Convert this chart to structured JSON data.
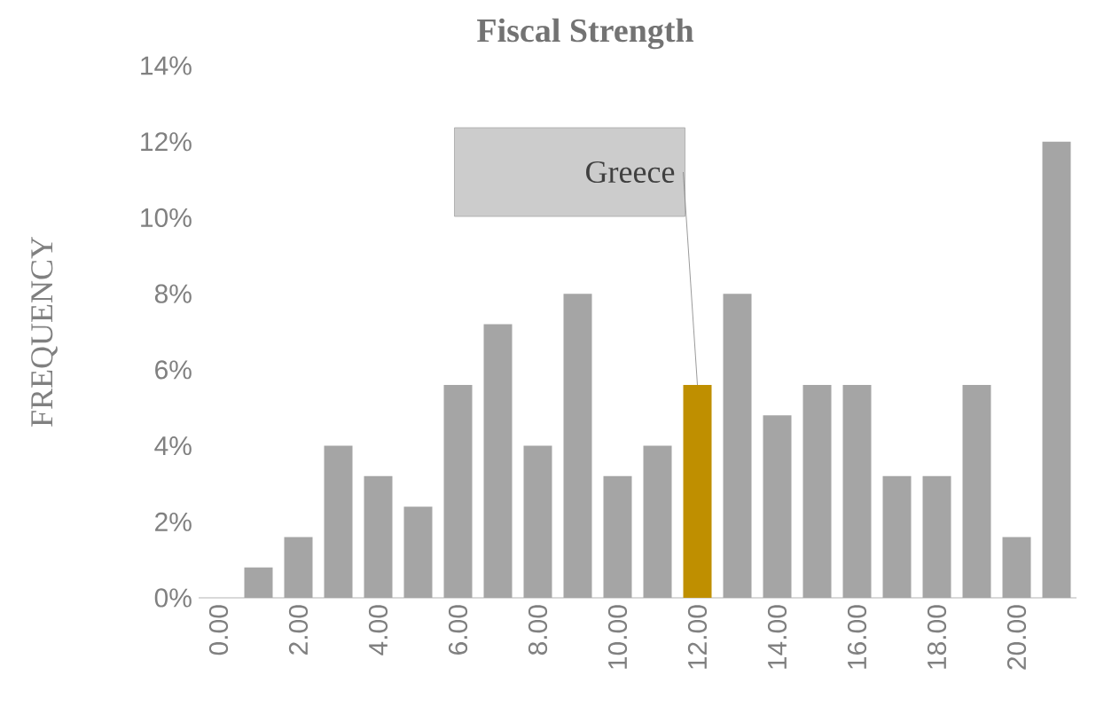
{
  "chart_data": {
    "type": "bar",
    "title": "Fiscal Strength",
    "ylabel": "FREQUENCY",
    "categories": [
      "0.00",
      null,
      "2.00",
      null,
      "4.00",
      null,
      "6.00",
      null,
      "8.00",
      null,
      "10.00",
      null,
      "12.00",
      null,
      "14.00",
      null,
      "16.00",
      null,
      "18.00",
      null,
      "20.00",
      null
    ],
    "values": [
      0,
      0.8,
      1.6,
      4.0,
      3.2,
      2.4,
      5.6,
      7.2,
      4.0,
      8.0,
      3.2,
      4.0,
      5.6,
      8.0,
      4.8,
      5.6,
      5.6,
      3.2,
      3.2,
      5.6,
      1.6,
      12.0
    ],
    "colors": [
      "#a5a5a5",
      "#a5a5a5",
      "#a5a5a5",
      "#a5a5a5",
      "#a5a5a5",
      "#a5a5a5",
      "#a5a5a5",
      "#a5a5a5",
      "#a5a5a5",
      "#a5a5a5",
      "#a5a5a5",
      "#a5a5a5",
      "#bf8f00",
      "#a5a5a5",
      "#a5a5a5",
      "#a5a5a5",
      "#a5a5a5",
      "#a5a5a5",
      "#a5a5a5",
      "#a5a5a5",
      "#a5a5a5",
      "#a5a5a5"
    ],
    "ylim": [
      0,
      14
    ],
    "yticks": [
      {
        "value": 0,
        "label": "0%"
      },
      {
        "value": 2,
        "label": "2%"
      },
      {
        "value": 4,
        "label": "4%"
      },
      {
        "value": 6,
        "label": "6%"
      },
      {
        "value": 8,
        "label": "8%"
      },
      {
        "value": 10,
        "label": "10%"
      },
      {
        "value": 12,
        "label": "12%"
      },
      {
        "value": 14,
        "label": "14%"
      }
    ],
    "annotations": [
      {
        "text": "Greece",
        "x": "12.00",
        "y": 5.6
      }
    ]
  }
}
